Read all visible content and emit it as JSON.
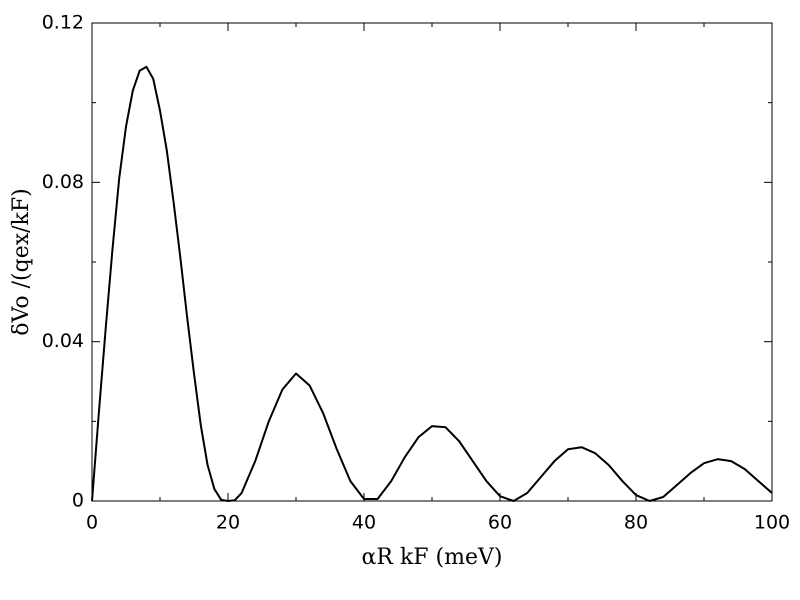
{
  "chart_data": {
    "type": "line",
    "x_label": "αR kF (meV)",
    "y_label": "δVo /(qex/kF)",
    "x": [
      0,
      1,
      2,
      3,
      4,
      5,
      6,
      7,
      8,
      9,
      10,
      11,
      12,
      13,
      14,
      15,
      16,
      17,
      18,
      19,
      20,
      21,
      22,
      24,
      26,
      28,
      30,
      32,
      34,
      36,
      38,
      40,
      42,
      44,
      46,
      48,
      50,
      52,
      54,
      56,
      58,
      60,
      62,
      64,
      66,
      68,
      70,
      72,
      74,
      76,
      78,
      80,
      82,
      84,
      86,
      88,
      90,
      92,
      94,
      96,
      98,
      100
    ],
    "series": [
      {
        "color": "#000000",
        "values": [
          0,
          0.022,
          0.043,
          0.063,
          0.081,
          0.094,
          0.103,
          0.108,
          0.109,
          0.106,
          0.098,
          0.088,
          0.075,
          0.061,
          0.046,
          0.032,
          0.019,
          0.009,
          0.003,
          0.0003,
          0,
          0.0002,
          0.002,
          0.01,
          0.02,
          0.028,
          0.032,
          0.029,
          0.022,
          0.013,
          0.005,
          0.0005,
          0.0005,
          0.005,
          0.011,
          0.016,
          0.0188,
          0.0185,
          0.015,
          0.01,
          0.005,
          0.0012,
          0,
          0.002,
          0.006,
          0.01,
          0.013,
          0.0135,
          0.012,
          0.009,
          0.005,
          0.0015,
          0,
          0.001,
          0.004,
          0.007,
          0.0095,
          0.0105,
          0.01,
          0.008,
          0.005,
          0.002
        ]
      }
    ],
    "xlim": [
      0,
      100
    ],
    "xticks": [
      0,
      20,
      40,
      60,
      80,
      100
    ],
    "xminor_ticks": [
      10,
      30,
      50,
      70,
      90
    ],
    "ylim": [
      0,
      0.12
    ],
    "yticks": [
      0,
      0.04,
      0.08,
      0.12
    ],
    "yminor_ticks": [
      0.02,
      0.06,
      0.1
    ]
  }
}
